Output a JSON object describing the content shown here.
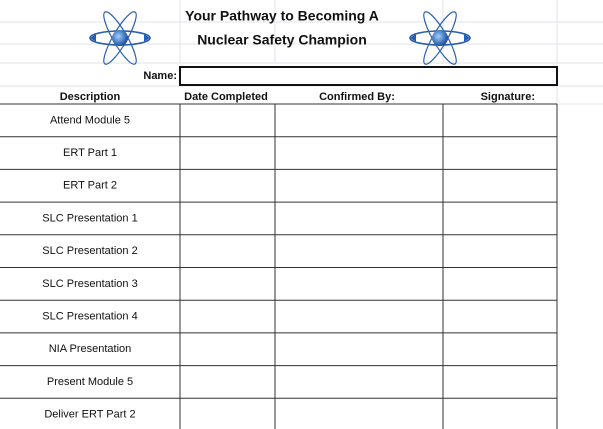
{
  "header": {
    "title_line_1": "Your Pathway to Becoming A",
    "title_line_2": "Nuclear Safety Champion"
  },
  "name_label": "Name:",
  "table": {
    "columns": [
      "Description",
      "Date Completed",
      "Confirmed By:",
      "Signature:"
    ],
    "rows": [
      "Attend Module 5",
      "ERT Part 1",
      "ERT Part 2",
      "SLC Presentation 1",
      "SLC Presentation 2",
      "SLC Presentation 3",
      "SLC Presentation 4",
      "NIA  Presentation",
      "Present Module 5",
      "Deliver ERT Part 2"
    ]
  }
}
